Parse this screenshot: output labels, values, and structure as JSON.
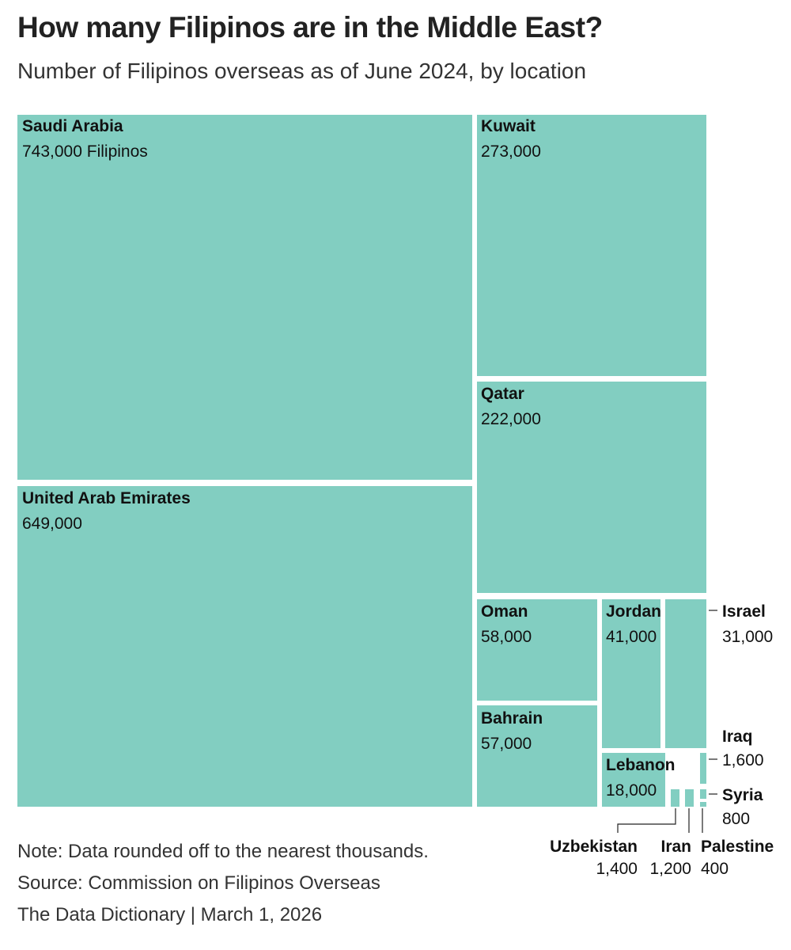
{
  "chart_data": {
    "type": "treemap",
    "title": "How many Filipinos are in the Middle East?",
    "subtitle": "Number of Filipinos overseas as of June 2024, by location",
    "color": "#82cec1",
    "label_color": "#111111",
    "unit_suffix": "Filipinos",
    "items": [
      {
        "name": "Saudi Arabia",
        "value": 743000,
        "value_label": "743,000"
      },
      {
        "name": "United Arab Emirates",
        "value": 649000,
        "value_label": "649,000"
      },
      {
        "name": "Kuwait",
        "value": 273000,
        "value_label": "273,000"
      },
      {
        "name": "Qatar",
        "value": 222000,
        "value_label": "222,000"
      },
      {
        "name": "Oman",
        "value": 58000,
        "value_label": "58,000"
      },
      {
        "name": "Bahrain",
        "value": 57000,
        "value_label": "57,000"
      },
      {
        "name": "Jordan",
        "value": 41000,
        "value_label": "41,000"
      },
      {
        "name": "Israel",
        "value": 31000,
        "value_label": "31,000"
      },
      {
        "name": "Lebanon",
        "value": 18000,
        "value_label": "18,000"
      },
      {
        "name": "Iraq",
        "value": 1600,
        "value_label": "1,600"
      },
      {
        "name": "Uzbekistan",
        "value": 1400,
        "value_label": "1,400"
      },
      {
        "name": "Iran",
        "value": 1200,
        "value_label": "1,200"
      },
      {
        "name": "Syria",
        "value": 800,
        "value_label": "800"
      },
      {
        "name": "Palestine",
        "value": 400,
        "value_label": "400"
      }
    ]
  },
  "footer": {
    "note": "Note: Data rounded off to the nearest thousands.",
    "source": "Source: Commission on Filipinos Overseas",
    "credit": "The Data Dictionary | March 1, 2026"
  }
}
